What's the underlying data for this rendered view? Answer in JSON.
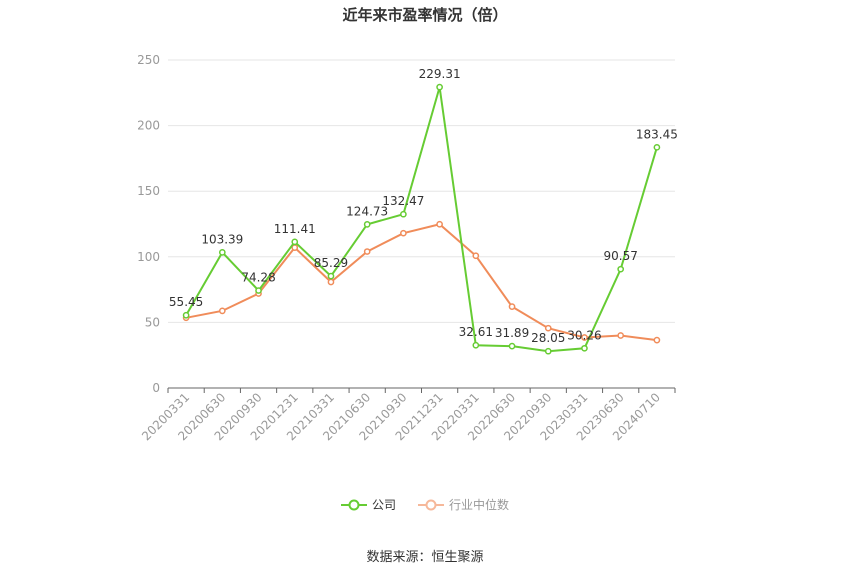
{
  "chart_data": {
    "type": "line",
    "title": "近年来市盈率情况（倍）",
    "categories": [
      "20200331",
      "20200630",
      "20200930",
      "20201231",
      "20210331",
      "20210630",
      "20210930",
      "20211231",
      "20220331",
      "20220630",
      "20220930",
      "20230331",
      "20230630",
      "20240710"
    ],
    "series": [
      {
        "name": "公司",
        "color": "#66cc33",
        "values": [
          55.45,
          103.39,
          74.28,
          111.41,
          85.29,
          124.73,
          132.47,
          229.31,
          32.61,
          31.89,
          28.05,
          30.26,
          90.57,
          183.45
        ],
        "labels": [
          "55.45",
          "103.39",
          "74.28",
          "111.41",
          "85.29",
          "124.73",
          "132.47",
          "229.31",
          "32.61",
          "31.89",
          "28.05",
          "30.26",
          "90.57",
          "183.45"
        ]
      },
      {
        "name": "行业中位数",
        "color": "#f08c5a",
        "values": [
          53.5,
          58.8,
          72.0,
          107.0,
          80.8,
          104.0,
          118.0,
          124.8,
          100.8,
          62.0,
          45.6,
          38.5,
          40.0,
          36.5
        ]
      }
    ],
    "ylim": [
      0,
      250
    ],
    "yticks": [
      0,
      50,
      100,
      150,
      200,
      250
    ],
    "grid": true,
    "legend_position": "bottom"
  },
  "source": "数据来源：恒生聚源"
}
